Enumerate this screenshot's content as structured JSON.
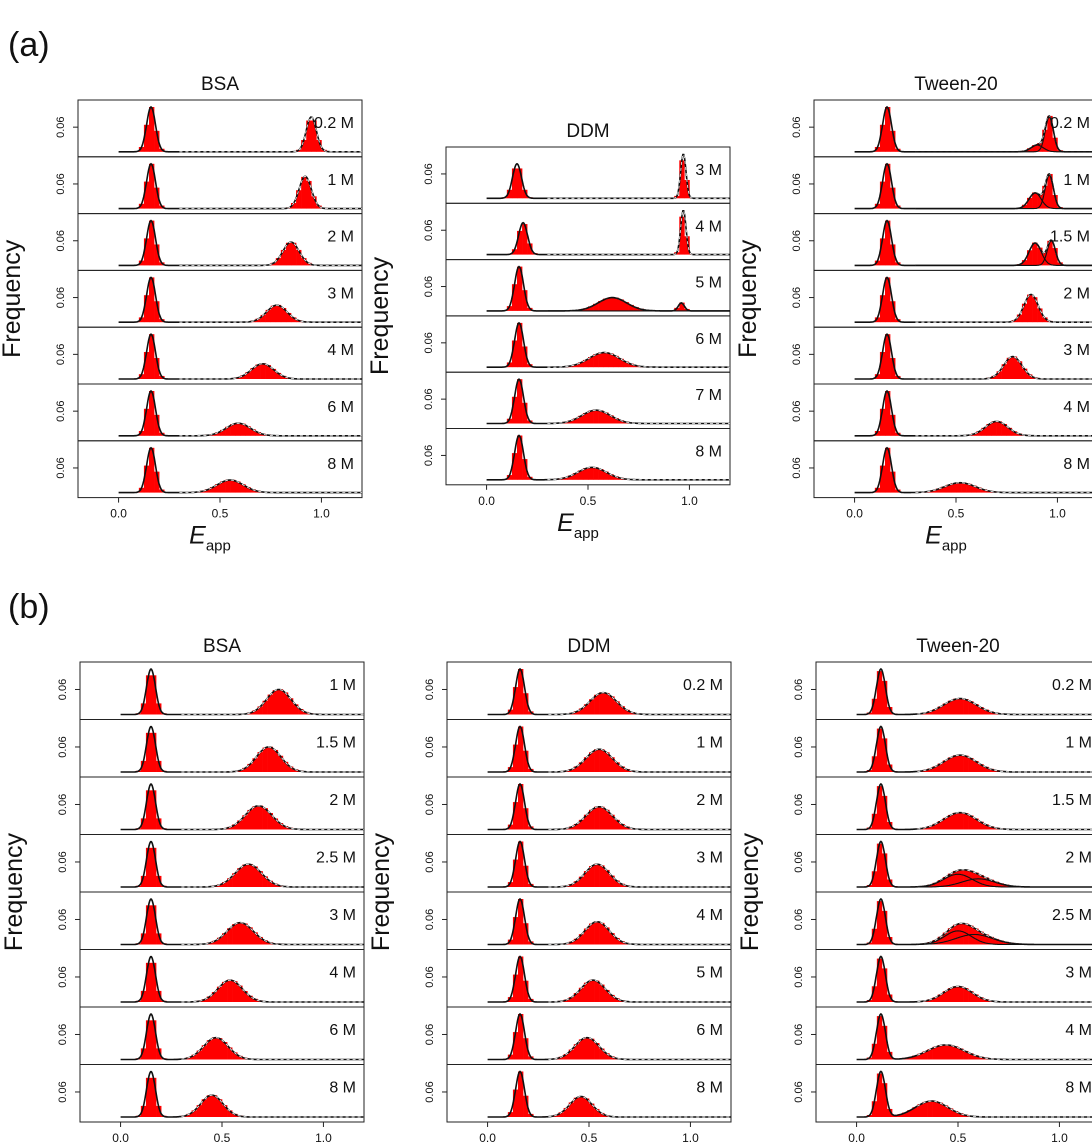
{
  "figure": {
    "panel_labels": [
      "(a)",
      "(b)"
    ],
    "y_axis_label": "Frequency",
    "x_axis_label_main": "E",
    "x_axis_label_sub": "app",
    "y_tick_label": "0.06",
    "x_tick_labels": [
      "0.0",
      "0.5",
      "1.0"
    ]
  },
  "chart_data": [
    {
      "type": "histogram",
      "panel": "(a)",
      "title": "BSA",
      "xlim": [
        -0.2,
        1.2
      ],
      "x_ticks": [
        0.0,
        0.5,
        1.0
      ],
      "rows": [
        {
          "label": "0.2 M",
          "peaks": [
            {
              "mu": 0.16,
              "sigma": 0.022,
              "amp": 1.0
            },
            {
              "mu": 0.95,
              "sigma": 0.025,
              "amp": 0.78
            }
          ]
        },
        {
          "label": "1 M",
          "peaks": [
            {
              "mu": 0.16,
              "sigma": 0.022,
              "amp": 1.0
            },
            {
              "mu": 0.92,
              "sigma": 0.03,
              "amp": 0.72
            }
          ]
        },
        {
          "label": "2 M",
          "peaks": [
            {
              "mu": 0.16,
              "sigma": 0.022,
              "amp": 1.0
            },
            {
              "mu": 0.85,
              "sigma": 0.04,
              "amp": 0.52
            }
          ]
        },
        {
          "label": "3 M",
          "peaks": [
            {
              "mu": 0.16,
              "sigma": 0.022,
              "amp": 1.0
            },
            {
              "mu": 0.78,
              "sigma": 0.05,
              "amp": 0.38
            }
          ]
        },
        {
          "label": "4 M",
          "peaks": [
            {
              "mu": 0.16,
              "sigma": 0.022,
              "amp": 1.0
            },
            {
              "mu": 0.71,
              "sigma": 0.055,
              "amp": 0.34
            }
          ]
        },
        {
          "label": "6 M",
          "peaks": [
            {
              "mu": 0.16,
              "sigma": 0.022,
              "amp": 1.0
            },
            {
              "mu": 0.59,
              "sigma": 0.06,
              "amp": 0.28
            }
          ]
        },
        {
          "label": "8 M",
          "peaks": [
            {
              "mu": 0.16,
              "sigma": 0.022,
              "amp": 1.0
            },
            {
              "mu": 0.55,
              "sigma": 0.065,
              "amp": 0.28
            }
          ]
        }
      ]
    },
    {
      "type": "histogram",
      "panel": "(a)",
      "title": "DDM",
      "xlim": [
        -0.2,
        1.2
      ],
      "x_ticks": [
        0.0,
        0.5,
        1.0
      ],
      "rows": [
        {
          "label": "3 M",
          "peaks": [
            {
              "mu": 0.15,
              "sigma": 0.022,
              "amp": 0.78
            },
            {
              "mu": 0.97,
              "sigma": 0.013,
              "amp": 1.0
            }
          ]
        },
        {
          "label": "4 M",
          "peaks": [
            {
              "mu": 0.18,
              "sigma": 0.022,
              "amp": 0.72
            },
            {
              "mu": 0.97,
              "sigma": 0.013,
              "amp": 1.0
            }
          ]
        },
        {
          "label": "5 M",
          "peaks": [
            {
              "mu": 0.16,
              "sigma": 0.022,
              "amp": 1.0
            },
            {
              "mu": 0.62,
              "sigma": 0.07,
              "amp": 0.3
            },
            {
              "mu": 0.96,
              "sigma": 0.015,
              "amp": 0.18
            }
          ]
        },
        {
          "label": "6 M",
          "peaks": [
            {
              "mu": 0.16,
              "sigma": 0.022,
              "amp": 1.0
            },
            {
              "mu": 0.58,
              "sigma": 0.075,
              "amp": 0.33
            }
          ]
        },
        {
          "label": "7 M",
          "peaks": [
            {
              "mu": 0.16,
              "sigma": 0.022,
              "amp": 1.0
            },
            {
              "mu": 0.54,
              "sigma": 0.07,
              "amp": 0.3
            }
          ]
        },
        {
          "label": "8 M",
          "peaks": [
            {
              "mu": 0.16,
              "sigma": 0.022,
              "amp": 1.0
            },
            {
              "mu": 0.52,
              "sigma": 0.07,
              "amp": 0.28
            }
          ]
        }
      ]
    },
    {
      "type": "histogram",
      "panel": "(a)",
      "title": "Tween-20",
      "xlim": [
        -0.2,
        1.2
      ],
      "x_ticks": [
        0.0,
        0.5,
        1.0
      ],
      "rows": [
        {
          "label": "0.2 M",
          "peaks": [
            {
              "mu": 0.16,
              "sigma": 0.022,
              "amp": 1.0
            },
            {
              "mu": 0.96,
              "sigma": 0.02,
              "amp": 0.78
            },
            {
              "mu": 0.9,
              "sigma": 0.03,
              "amp": 0.15
            }
          ]
        },
        {
          "label": "1 M",
          "peaks": [
            {
              "mu": 0.16,
              "sigma": 0.022,
              "amp": 1.0
            },
            {
              "mu": 0.96,
              "sigma": 0.02,
              "amp": 0.75
            },
            {
              "mu": 0.89,
              "sigma": 0.03,
              "amp": 0.35
            }
          ]
        },
        {
          "label": "1.5 M",
          "peaks": [
            {
              "mu": 0.16,
              "sigma": 0.022,
              "amp": 1.0
            },
            {
              "mu": 0.89,
              "sigma": 0.03,
              "amp": 0.5
            },
            {
              "mu": 0.97,
              "sigma": 0.02,
              "amp": 0.55
            }
          ]
        },
        {
          "label": "2 M",
          "peaks": [
            {
              "mu": 0.16,
              "sigma": 0.022,
              "amp": 1.0
            },
            {
              "mu": 0.87,
              "sigma": 0.035,
              "amp": 0.62
            }
          ]
        },
        {
          "label": "3 M",
          "peaks": [
            {
              "mu": 0.16,
              "sigma": 0.022,
              "amp": 1.0
            },
            {
              "mu": 0.78,
              "sigma": 0.045,
              "amp": 0.5
            }
          ]
        },
        {
          "label": "4 M",
          "peaks": [
            {
              "mu": 0.16,
              "sigma": 0.022,
              "amp": 1.0
            },
            {
              "mu": 0.7,
              "sigma": 0.055,
              "amp": 0.32
            }
          ]
        },
        {
          "label": "8 M",
          "peaks": [
            {
              "mu": 0.16,
              "sigma": 0.022,
              "amp": 1.0
            },
            {
              "mu": 0.52,
              "sigma": 0.075,
              "amp": 0.22
            }
          ]
        }
      ]
    },
    {
      "type": "histogram",
      "panel": "(b)",
      "title": "BSA",
      "xlim": [
        -0.2,
        1.2
      ],
      "x_ticks": [
        0.0,
        0.5,
        1.0
      ],
      "rows": [
        {
          "label": "1 M",
          "peaks": [
            {
              "mu": 0.15,
              "sigma": 0.022,
              "amp": 1.0
            },
            {
              "mu": 0.78,
              "sigma": 0.06,
              "amp": 0.55
            }
          ]
        },
        {
          "label": "1.5 M",
          "peaks": [
            {
              "mu": 0.15,
              "sigma": 0.022,
              "amp": 1.0
            },
            {
              "mu": 0.73,
              "sigma": 0.06,
              "amp": 0.55
            }
          ]
        },
        {
          "label": "2 M",
          "peaks": [
            {
              "mu": 0.15,
              "sigma": 0.022,
              "amp": 1.0
            },
            {
              "mu": 0.68,
              "sigma": 0.065,
              "amp": 0.52
            }
          ]
        },
        {
          "label": "2.5 M",
          "peaks": [
            {
              "mu": 0.15,
              "sigma": 0.022,
              "amp": 1.0
            },
            {
              "mu": 0.63,
              "sigma": 0.065,
              "amp": 0.5
            }
          ]
        },
        {
          "label": "3 M",
          "peaks": [
            {
              "mu": 0.15,
              "sigma": 0.022,
              "amp": 1.0
            },
            {
              "mu": 0.59,
              "sigma": 0.065,
              "amp": 0.48
            }
          ]
        },
        {
          "label": "4 M",
          "peaks": [
            {
              "mu": 0.15,
              "sigma": 0.022,
              "amp": 1.0
            },
            {
              "mu": 0.54,
              "sigma": 0.06,
              "amp": 0.48
            }
          ]
        },
        {
          "label": "6 M",
          "peaks": [
            {
              "mu": 0.15,
              "sigma": 0.022,
              "amp": 1.0
            },
            {
              "mu": 0.47,
              "sigma": 0.06,
              "amp": 0.48
            }
          ]
        },
        {
          "label": "8 M",
          "peaks": [
            {
              "mu": 0.15,
              "sigma": 0.022,
              "amp": 1.0
            },
            {
              "mu": 0.45,
              "sigma": 0.055,
              "amp": 0.48
            }
          ]
        }
      ]
    },
    {
      "type": "histogram",
      "panel": "(b)",
      "title": "DDM",
      "xlim": [
        -0.2,
        1.2
      ],
      "x_ticks": [
        0.0,
        0.5,
        1.0
      ],
      "rows": [
        {
          "label": "0.2 M",
          "peaks": [
            {
              "mu": 0.16,
              "sigma": 0.022,
              "amp": 1.0
            },
            {
              "mu": 0.57,
              "sigma": 0.065,
              "amp": 0.48
            }
          ]
        },
        {
          "label": "1 M",
          "peaks": [
            {
              "mu": 0.16,
              "sigma": 0.022,
              "amp": 1.0
            },
            {
              "mu": 0.55,
              "sigma": 0.065,
              "amp": 0.5
            }
          ]
        },
        {
          "label": "2 M",
          "peaks": [
            {
              "mu": 0.16,
              "sigma": 0.022,
              "amp": 1.0
            },
            {
              "mu": 0.55,
              "sigma": 0.065,
              "amp": 0.5
            }
          ]
        },
        {
          "label": "3 M",
          "peaks": [
            {
              "mu": 0.16,
              "sigma": 0.022,
              "amp": 1.0
            },
            {
              "mu": 0.54,
              "sigma": 0.06,
              "amp": 0.5
            }
          ]
        },
        {
          "label": "4 M",
          "peaks": [
            {
              "mu": 0.16,
              "sigma": 0.022,
              "amp": 1.0
            },
            {
              "mu": 0.54,
              "sigma": 0.06,
              "amp": 0.5
            }
          ]
        },
        {
          "label": "5 M",
          "peaks": [
            {
              "mu": 0.16,
              "sigma": 0.022,
              "amp": 1.0
            },
            {
              "mu": 0.52,
              "sigma": 0.06,
              "amp": 0.48
            }
          ]
        },
        {
          "label": "6 M",
          "peaks": [
            {
              "mu": 0.16,
              "sigma": 0.022,
              "amp": 1.0
            },
            {
              "mu": 0.49,
              "sigma": 0.06,
              "amp": 0.48
            }
          ]
        },
        {
          "label": "8 M",
          "peaks": [
            {
              "mu": 0.16,
              "sigma": 0.022,
              "amp": 1.0
            },
            {
              "mu": 0.46,
              "sigma": 0.055,
              "amp": 0.45
            }
          ]
        }
      ]
    },
    {
      "type": "histogram",
      "panel": "(b)",
      "title": "Tween-20",
      "xlim": [
        -0.2,
        1.2
      ],
      "x_ticks": [
        0.0,
        0.5,
        1.0
      ],
      "rows": [
        {
          "label": "0.2 M",
          "peaks": [
            {
              "mu": 0.12,
              "sigma": 0.022,
              "amp": 1.0
            },
            {
              "mu": 0.51,
              "sigma": 0.08,
              "amp": 0.35
            }
          ]
        },
        {
          "label": "1 M",
          "peaks": [
            {
              "mu": 0.12,
              "sigma": 0.022,
              "amp": 1.0
            },
            {
              "mu": 0.51,
              "sigma": 0.08,
              "amp": 0.37
            }
          ]
        },
        {
          "label": "1.5 M",
          "peaks": [
            {
              "mu": 0.12,
              "sigma": 0.022,
              "amp": 1.0
            },
            {
              "mu": 0.51,
              "sigma": 0.08,
              "amp": 0.37
            }
          ]
        },
        {
          "label": "2 M",
          "peaks": [
            {
              "mu": 0.12,
              "sigma": 0.022,
              "amp": 1.0
            },
            {
              "mu": 0.5,
              "sigma": 0.07,
              "amp": 0.28
            },
            {
              "mu": 0.6,
              "sigma": 0.08,
              "amp": 0.18
            }
          ]
        },
        {
          "label": "2.5 M",
          "peaks": [
            {
              "mu": 0.12,
              "sigma": 0.022,
              "amp": 1.0
            },
            {
              "mu": 0.5,
              "sigma": 0.065,
              "amp": 0.3
            },
            {
              "mu": 0.58,
              "sigma": 0.09,
              "amp": 0.22
            }
          ]
        },
        {
          "label": "3 M",
          "peaks": [
            {
              "mu": 0.12,
              "sigma": 0.022,
              "amp": 1.0
            },
            {
              "mu": 0.5,
              "sigma": 0.07,
              "amp": 0.34
            }
          ]
        },
        {
          "label": "4 M",
          "peaks": [
            {
              "mu": 0.12,
              "sigma": 0.022,
              "amp": 1.0
            },
            {
              "mu": 0.44,
              "sigma": 0.09,
              "amp": 0.32
            }
          ]
        },
        {
          "label": "8 M",
          "peaks": [
            {
              "mu": 0.12,
              "sigma": 0.022,
              "amp": 1.0
            },
            {
              "mu": 0.37,
              "sigma": 0.08,
              "amp": 0.35
            }
          ]
        }
      ]
    }
  ]
}
